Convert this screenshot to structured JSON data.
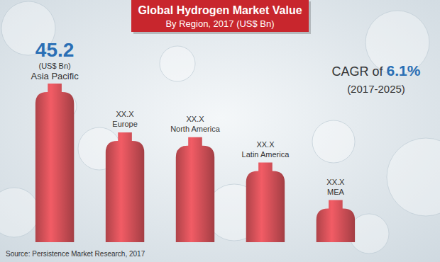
{
  "chart_data": {
    "type": "bar",
    "title": "Global Hydrogen Market Value",
    "subtitle": "By Region, 2017 (US$ Bn)",
    "categories": [
      "Asia Pacific",
      "Europe",
      "North America",
      "Latin America",
      "MEA"
    ],
    "values": [
      45.2,
      31.3,
      29.9,
      22.7,
      12
    ],
    "value_labels": [
      "45.2",
      "XX.X",
      "XX.X",
      "XX.X",
      "XX.X"
    ],
    "data_labels": true,
    "color": "#d9535b",
    "grid": false,
    "tick_labels": false,
    "unit_label": "(US$ Bn)",
    "annotation": {
      "prefix": "CAGR of",
      "value": "6.1%",
      "period": "(2017-2025)"
    },
    "source": "Source: Persistence Market Research, 2017"
  }
}
